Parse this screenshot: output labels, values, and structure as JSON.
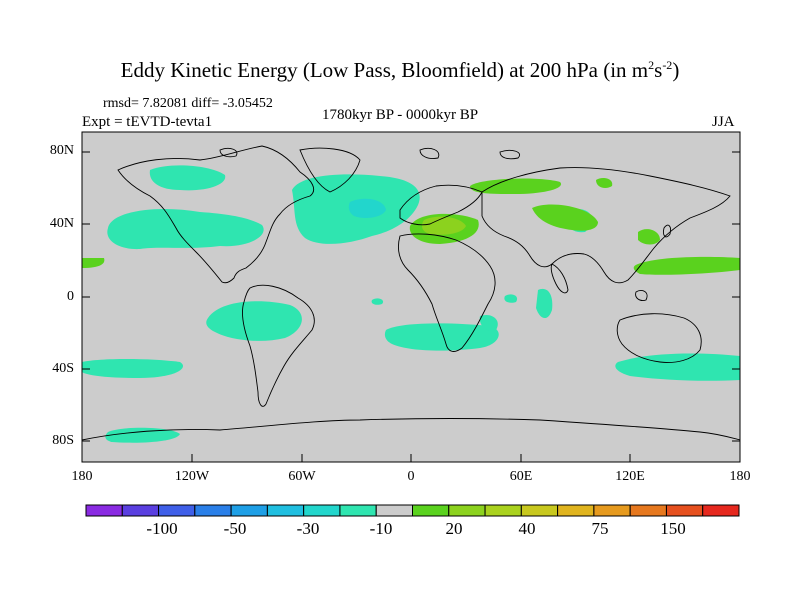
{
  "title": {
    "main": "Eddy Kinetic Energy (Low Pass, Bloomfield) at 200 hPa (in m",
    "sup1": "2",
    "mid": "s",
    "sup2": "-2",
    "end": ")"
  },
  "stats": "rmsd= 7.82081 diff= -3.05452",
  "expt": "Expt = tEVTD-tevta1",
  "period": "1780kyr BP - 0000kyr BP",
  "season": "JJA",
  "y_axis_labels": [
    "80N",
    "40N",
    "0",
    "40S",
    "80S"
  ],
  "x_axis_labels": [
    "180",
    "120W",
    "60W",
    "0",
    "60E",
    "120E",
    "180"
  ],
  "colorbar": {
    "labels": [
      "-100",
      "-50",
      "-30",
      "-10",
      "20",
      "40",
      "75",
      "150"
    ],
    "colors": [
      "#8a2be2",
      "#5a3fe0",
      "#3f5fe8",
      "#2a7fe8",
      "#1e9fe6",
      "#20bfe0",
      "#22d6cc",
      "#2fe5b0",
      "#cccccc",
      "#5ad21e",
      "#8cd21e",
      "#aad21e",
      "#c8c81e",
      "#e0b41e",
      "#e69a1e",
      "#e6781e",
      "#e6501e",
      "#e6281e"
    ]
  },
  "map": {
    "background_color": "#cccccc",
    "negative_color": "#2fe5b0",
    "positive_color": "#5ad21e",
    "positive_color_2": "#8cd21e"
  }
}
